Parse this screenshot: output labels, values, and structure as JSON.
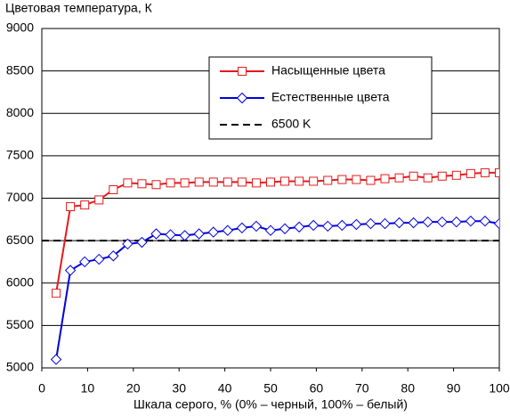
{
  "chart_data": {
    "type": "line",
    "title": "Цветовая температура, К",
    "x_label": "Шкала серого, % (0% – черный, 100% – белый)",
    "x": [
      3.125,
      6.25,
      9.375,
      12.5,
      15.625,
      18.75,
      21.875,
      25,
      28.125,
      31.25,
      34.375,
      37.5,
      40.625,
      43.75,
      46.875,
      50,
      53.125,
      56.25,
      59.375,
      62.5,
      65.625,
      68.75,
      71.875,
      75,
      78.125,
      81.25,
      84.375,
      87.5,
      90.625,
      93.75,
      96.875,
      100
    ],
    "series": [
      {
        "name": "Насыщенные цвета",
        "color": "#e41a1c",
        "marker": "square",
        "values": [
          5880,
          6900,
          6920,
          6980,
          7100,
          7180,
          7170,
          7160,
          7180,
          7180,
          7190,
          7190,
          7190,
          7190,
          7180,
          7190,
          7200,
          7200,
          7200,
          7210,
          7220,
          7220,
          7210,
          7230,
          7240,
          7260,
          7240,
          7260,
          7270,
          7290,
          7300,
          7300
        ]
      },
      {
        "name": "Естественные цвета",
        "color": "#0000dd",
        "marker": "diamond",
        "values": [
          5100,
          6150,
          6250,
          6280,
          6320,
          6460,
          6480,
          6580,
          6570,
          6560,
          6580,
          6600,
          6620,
          6650,
          6670,
          6620,
          6640,
          6660,
          6680,
          6670,
          6680,
          6690,
          6700,
          6700,
          6710,
          6710,
          6720,
          6720,
          6720,
          6730,
          6730,
          6700
        ]
      }
    ],
    "reference_lines": [
      {
        "name": "6500 K",
        "value": 6500,
        "color": "#000000"
      }
    ],
    "xlim": [
      0,
      100
    ],
    "xticks": [
      0,
      10,
      20,
      30,
      40,
      50,
      60,
      70,
      80,
      90,
      100
    ],
    "ylim": [
      5000,
      9000
    ],
    "yticks": [
      5000,
      5500,
      6000,
      6500,
      7000,
      7500,
      8000,
      8500,
      9000
    ],
    "grid": true,
    "legend": "upper right"
  }
}
